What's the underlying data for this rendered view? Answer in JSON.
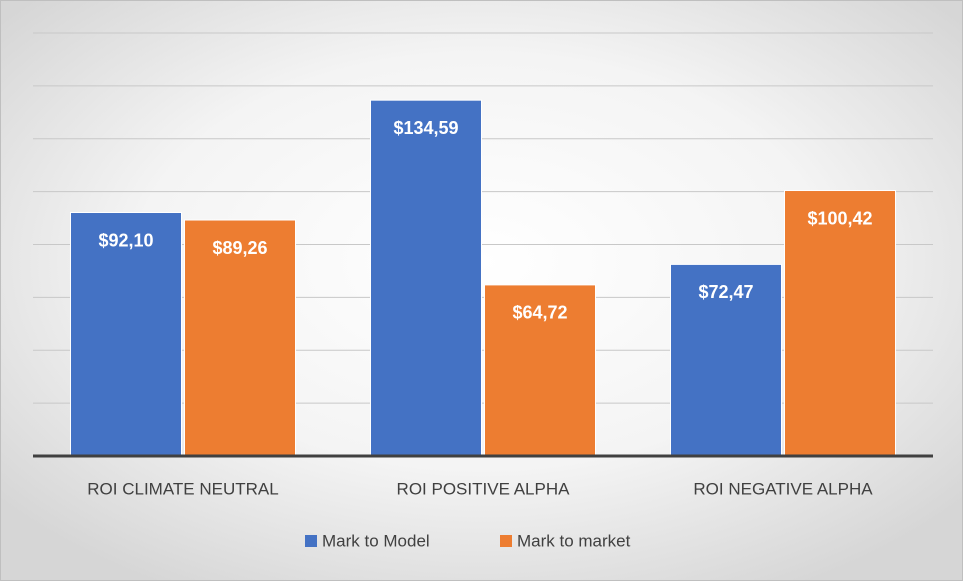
{
  "chart_data": {
    "type": "bar",
    "categories": [
      "ROI CLIMATE NEUTRAL",
      "ROI POSITIVE ALPHA",
      "ROI NEGATIVE ALPHA"
    ],
    "series": [
      {
        "name": "Mark to Model",
        "color": "#4472c4",
        "values": [
          92.1,
          134.59,
          72.47
        ],
        "value_labels": [
          "$92,10",
          "$134,59",
          "$72,47"
        ]
      },
      {
        "name": "Mark to market",
        "color": "#ed7d31",
        "values": [
          89.26,
          64.72,
          100.42
        ],
        "value_labels": [
          "$89,26",
          "$64,72",
          "$100,42"
        ]
      }
    ],
    "ylim": [
      0,
      160
    ],
    "yticks": [
      0,
      20,
      40,
      60,
      80,
      100,
      120,
      140,
      160
    ],
    "grid": true,
    "legend": "bottom"
  }
}
